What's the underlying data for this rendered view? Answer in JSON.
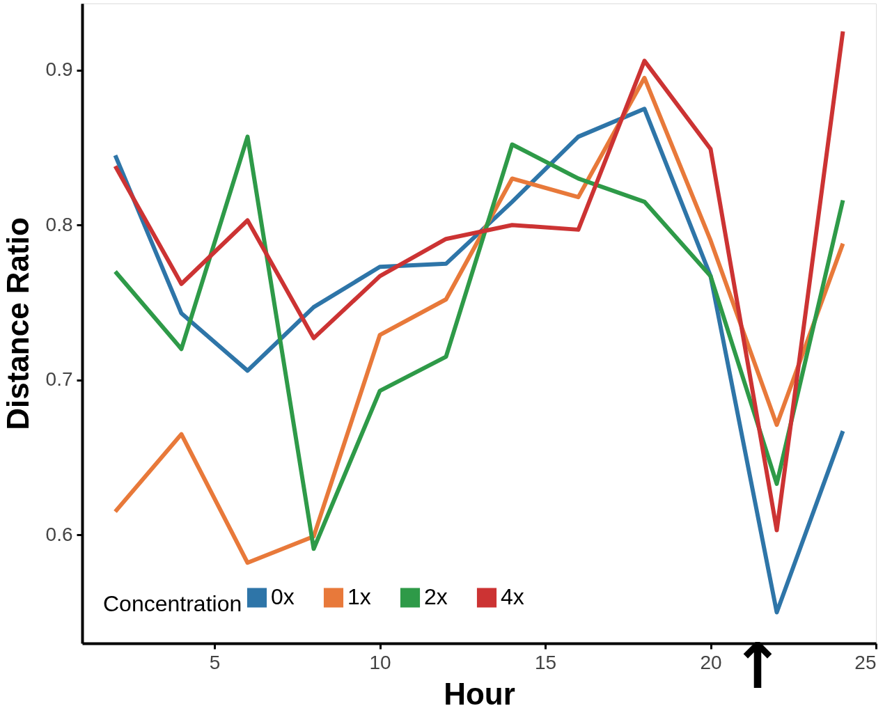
{
  "chart_data": {
    "type": "line",
    "xlabel": "Hour",
    "ylabel": "Distance Ratio",
    "legend_title": "Concentration",
    "x": [
      2,
      4,
      6,
      8,
      10,
      12,
      14,
      16,
      18,
      20,
      22,
      24
    ],
    "series": [
      {
        "name": "0x",
        "color": "#2e75a8",
        "values": [
          0.845,
          0.743,
          0.706,
          0.747,
          0.773,
          0.775,
          0.815,
          0.857,
          0.875,
          0.767,
          0.55,
          0.667
        ]
      },
      {
        "name": "1x",
        "color": "#e8793a",
        "values": [
          0.615,
          0.665,
          0.582,
          0.599,
          0.729,
          0.752,
          0.83,
          0.818,
          0.895,
          0.79,
          0.671,
          0.788
        ]
      },
      {
        "name": "2x",
        "color": "#2e9a48",
        "values": [
          0.77,
          0.72,
          0.857,
          0.591,
          0.693,
          0.715,
          0.852,
          0.83,
          0.815,
          0.767,
          0.633,
          0.816
        ]
      },
      {
        "name": "4x",
        "color": "#cc3333",
        "values": [
          0.838,
          0.762,
          0.803,
          0.727,
          0.767,
          0.791,
          0.8,
          0.797,
          0.906,
          0.849,
          0.603,
          0.925
        ]
      }
    ],
    "xlim": [
      1,
      25
    ],
    "xticks": [
      5,
      10,
      15,
      20,
      25
    ],
    "ylim": [
      0.53,
      0.943
    ],
    "yticks": [
      0.6,
      0.7,
      0.8,
      0.9
    ],
    "annotations": [
      "↑"
    ],
    "grid": false,
    "legend": "bottom left",
    "marker": "none",
    "line_style": "solid"
  }
}
